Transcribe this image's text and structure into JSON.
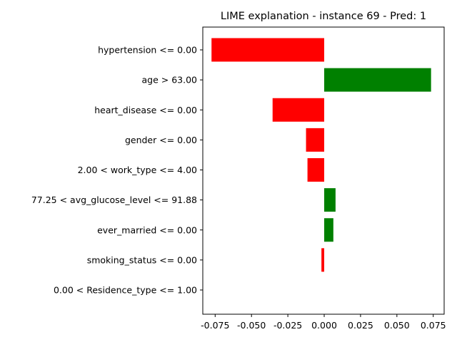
{
  "chart_data": {
    "type": "bar",
    "orientation": "horizontal",
    "title": "LIME explanation - instance 69 - Pred: 1",
    "xlabel": "",
    "ylabel": "",
    "xlim": [
      -0.0835,
      0.0825
    ],
    "xticks": [
      "-0.075",
      "-0.050",
      "-0.025",
      "0.000",
      "0.025",
      "0.050",
      "0.075"
    ],
    "xtick_values": [
      -0.075,
      -0.05,
      -0.025,
      0.0,
      0.025,
      0.05,
      0.075
    ],
    "grid": false,
    "legend": "none",
    "positive_color": "#008000",
    "negative_color": "#ff0000",
    "categories": [
      "hypertension <= 0.00",
      "age > 63.00",
      "heart_disease <= 0.00",
      "gender <= 0.00",
      "2.00 < work_type <= 4.00",
      "77.25 < avg_glucose_level <= 91.88",
      "ever_married <= 0.00",
      "smoking_status <= 0.00",
      "0.00 < Residence_type <= 1.00"
    ],
    "values": [
      -0.0775,
      0.0735,
      -0.0355,
      -0.0125,
      -0.0115,
      0.0078,
      0.0063,
      -0.0019,
      0.0
    ]
  }
}
